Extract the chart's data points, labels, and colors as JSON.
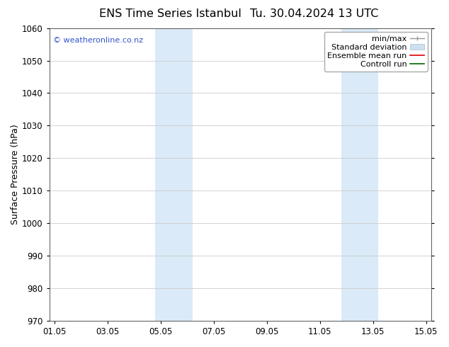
{
  "title_left": "ENS Time Series Istanbul",
  "title_right": "Tu. 30.04.2024 13 UTC",
  "ylabel": "Surface Pressure (hPa)",
  "ylim": [
    970,
    1060
  ],
  "yticks": [
    970,
    980,
    990,
    1000,
    1010,
    1020,
    1030,
    1040,
    1050,
    1060
  ],
  "xtick_labels": [
    "01.05",
    "03.05",
    "05.05",
    "07.05",
    "09.05",
    "11.05",
    "13.05",
    "15.05"
  ],
  "xtick_positions": [
    0,
    2,
    4,
    6,
    8,
    10,
    12,
    14
  ],
  "xlim": [
    -0.2,
    14.2
  ],
  "shaded_bands": [
    {
      "x_start": 3.8,
      "x_end": 5.2,
      "color": "#daeaf8"
    },
    {
      "x_start": 10.8,
      "x_end": 12.2,
      "color": "#daeaf8"
    }
  ],
  "watermark_text": "© weatheronline.co.nz",
  "watermark_color": "#3355cc",
  "bg_color": "#ffffff",
  "ax_bg_color": "#ffffff",
  "grid_color": "#cccccc",
  "title_fontsize": 11.5,
  "label_fontsize": 9,
  "tick_fontsize": 8.5,
  "legend_fontsize": 8,
  "watermark_fontsize": 8
}
